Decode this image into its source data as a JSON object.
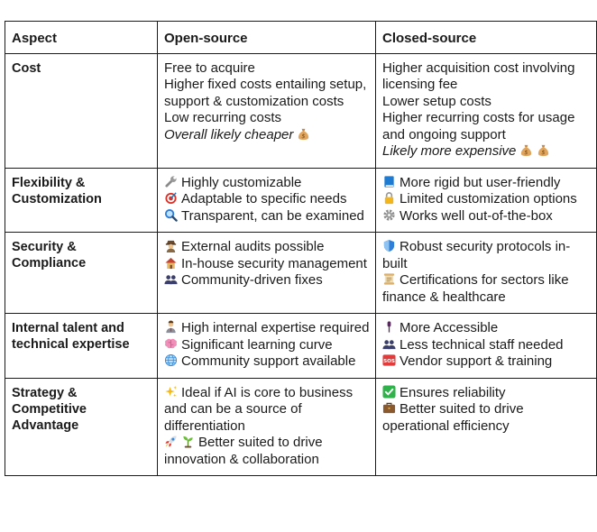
{
  "headers": {
    "aspect": "Aspect",
    "open": "Open-source",
    "closed": "Closed-source"
  },
  "rows": [
    {
      "aspect": "Cost",
      "open": [
        "Free to acquire",
        "Higher fixed costs entailing setup, support & customization costs",
        "Low recurring costs",
        "Overall likely cheaper"
      ],
      "closed": [
        "Higher acquisition cost involving licensing fee",
        "Lower setup costs",
        "Higher recurring costs for usage and ongoing support",
        "Likely more expensive"
      ]
    },
    {
      "aspect": "Flexibility & Customization",
      "open": [
        "Highly customizable",
        "Adaptable to specific needs",
        "Transparent, can be examined"
      ],
      "closed": [
        "More rigid but user-friendly",
        "Limited customization options",
        "Works well out-of-the-box"
      ]
    },
    {
      "aspect": "Security & Compliance",
      "open": [
        "External audits possible",
        "In-house security management",
        "Community-driven fixes"
      ],
      "closed": [
        "Robust security protocols in-built",
        "Certifications for sectors like finance & healthcare"
      ]
    },
    {
      "aspect": "Internal talent and technical expertise",
      "open": [
        "High internal expertise required",
        "Significant learning curve",
        "Community support available"
      ],
      "closed": [
        "More Accessible",
        "Less technical staff needed",
        "Vendor support & training"
      ]
    },
    {
      "aspect": "Strategy & Competitive Advantage",
      "open": [
        "Ideal if AI is core to business and can be a source of differentiation",
        "Better suited to drive innovation & collaboration"
      ],
      "closed": [
        "Ensures reliability",
        "Better suited to drive operational efficiency"
      ]
    }
  ],
  "icons": {
    "money": "money-bag-icon",
    "wrench": "wrench-icon",
    "target": "target-icon",
    "magnifier": "magnifier-icon",
    "book": "blue-book-icon",
    "lock": "lock-icon",
    "gear": "gear-icon",
    "detective": "detective-icon",
    "house": "house-icon",
    "people": "people-icon",
    "shield": "shield-icon",
    "scroll": "scroll-icon",
    "worker": "office-worker-icon",
    "brain": "brain-icon",
    "globe": "globe-icon",
    "mic": "microphone-icon",
    "sos": "sos-icon",
    "sparkles": "sparkles-icon",
    "rocket": "rocket-icon",
    "seedling": "seedling-icon",
    "check": "check-mark-icon",
    "briefcase": "briefcase-icon"
  }
}
